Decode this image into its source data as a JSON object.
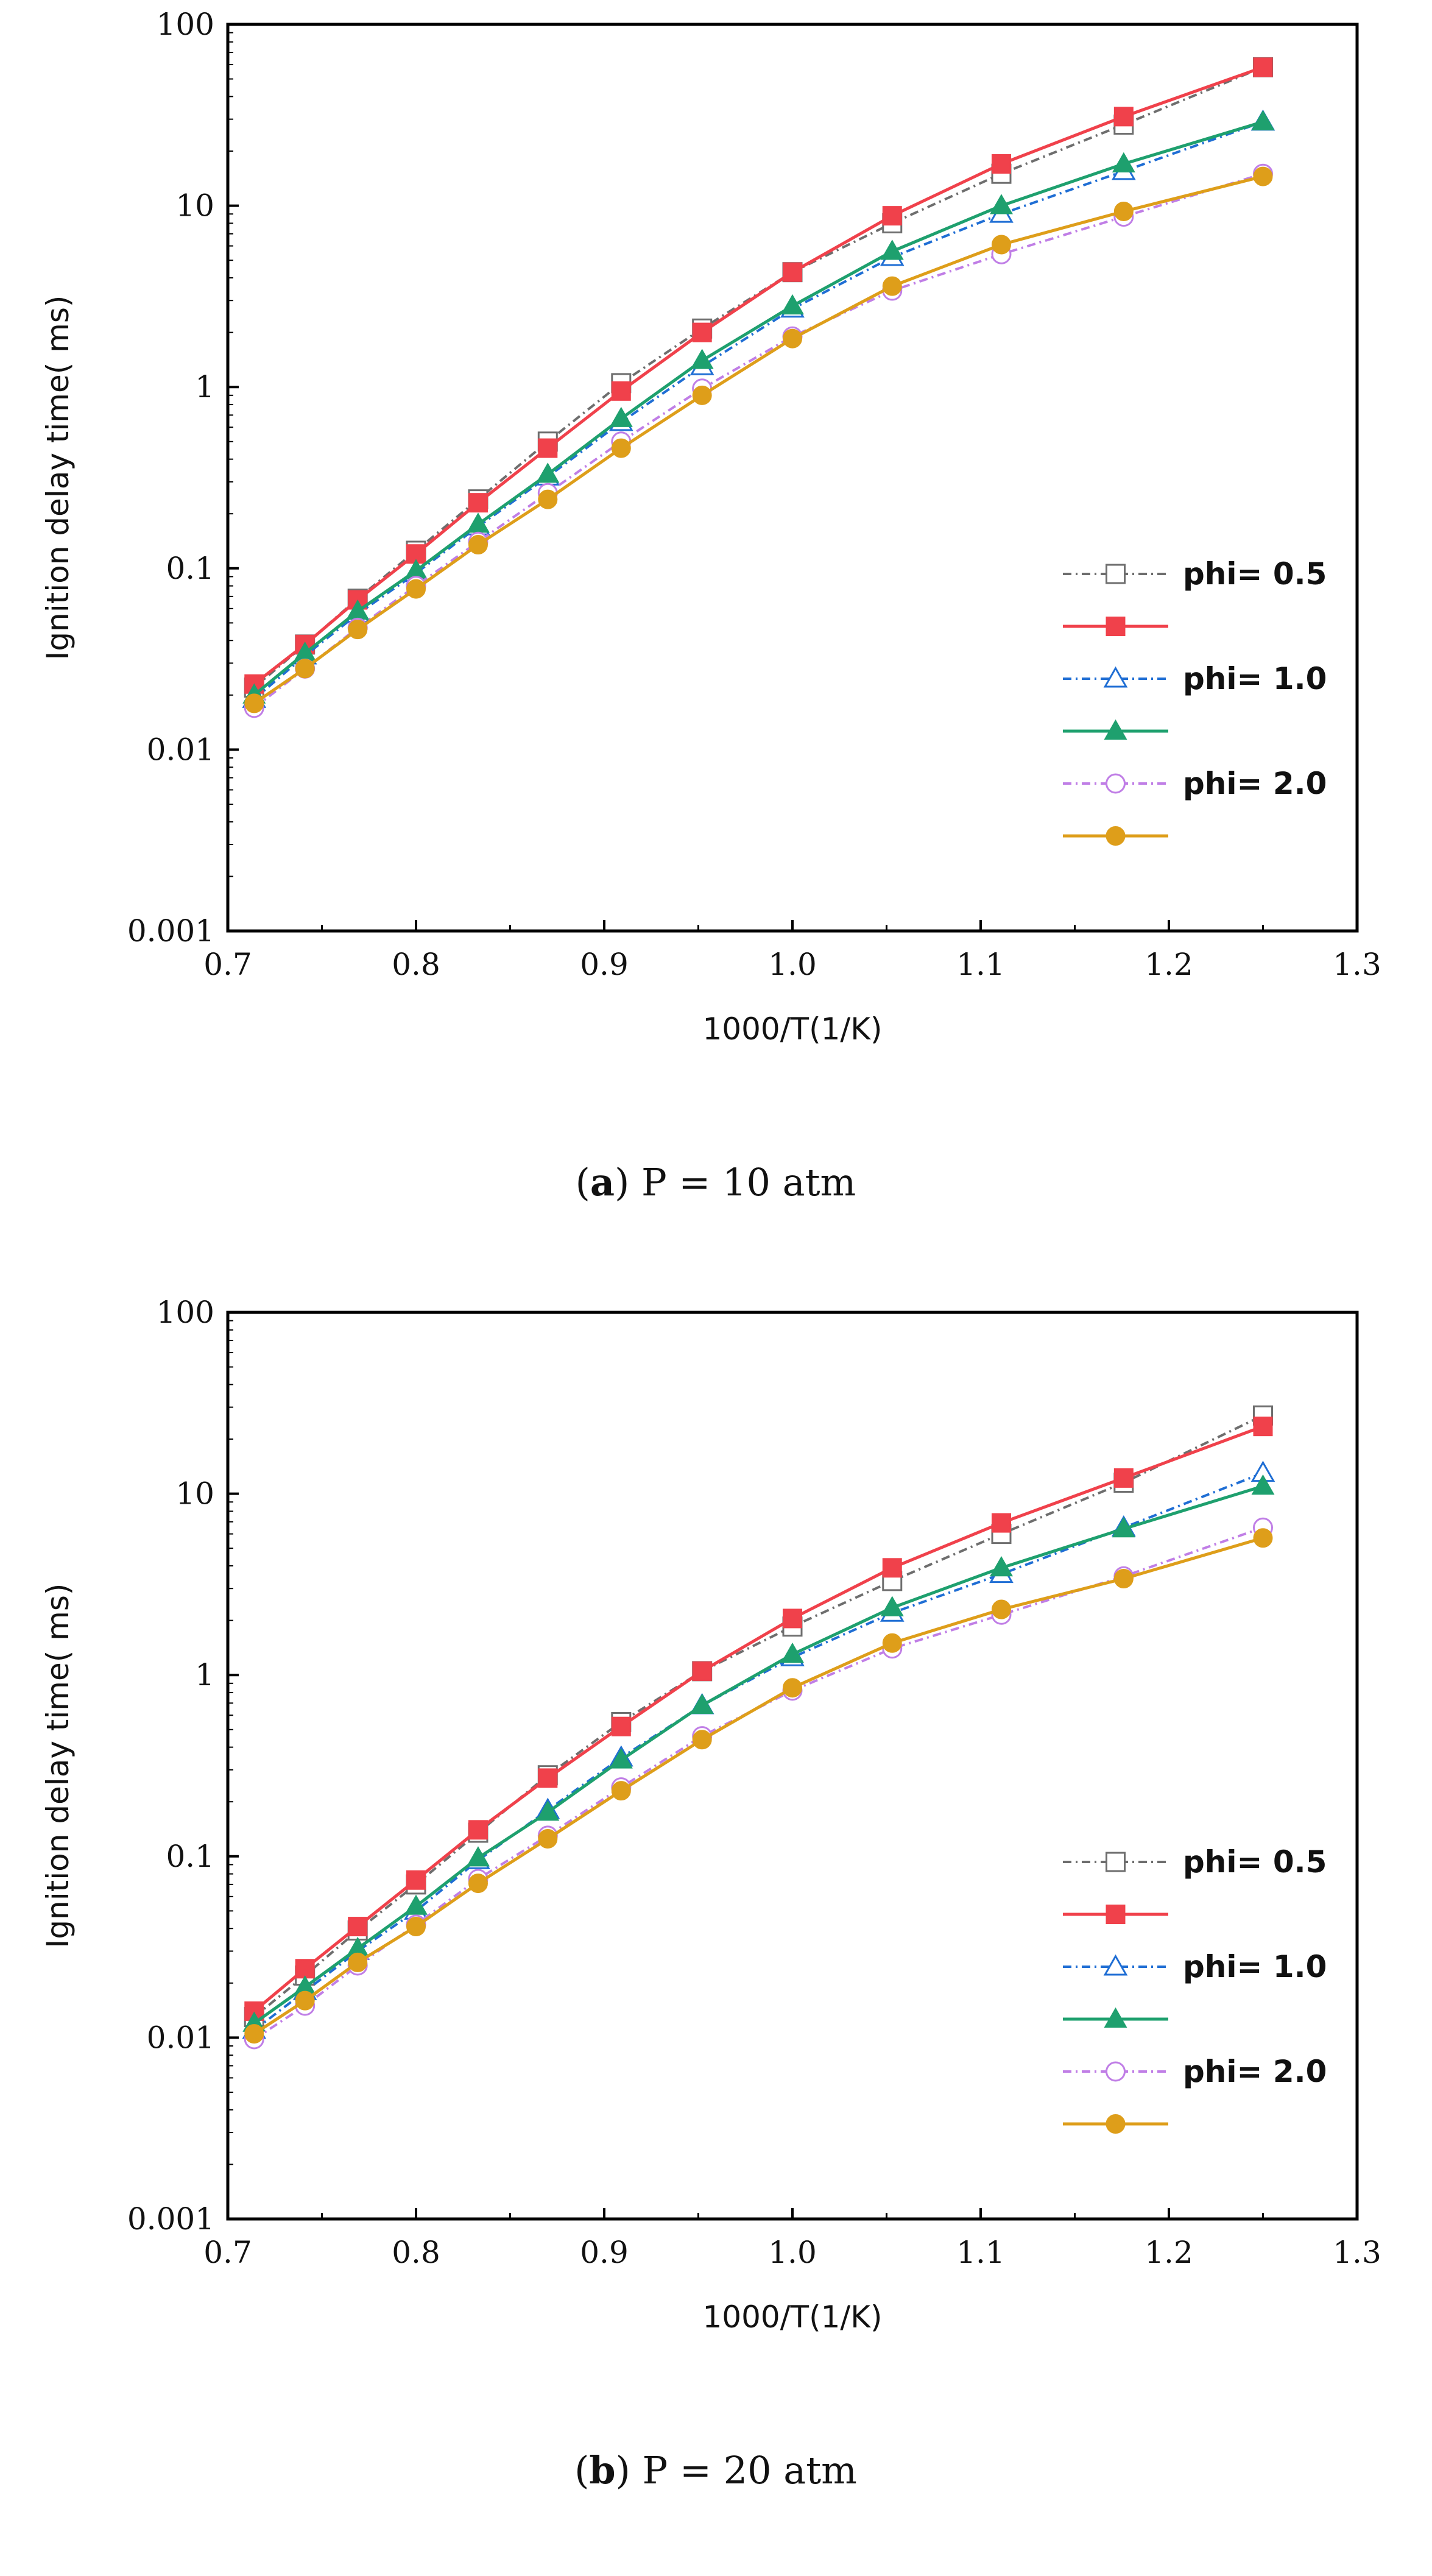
{
  "chart_data": [
    {
      "type": "line",
      "caption_letter": "a",
      "caption_text": "P = 10 atm",
      "xlabel": "1000/T(1/K)",
      "ylabel": "Ignition delay time( ms)",
      "yscale": "log",
      "xlim": [
        0.7,
        1.3
      ],
      "ylim": [
        0.001,
        100
      ],
      "x_ticks": [
        "0.7",
        "0.8",
        "0.9",
        "1.0",
        "1.1",
        "1.2",
        "1.3"
      ],
      "y_ticks": [
        "0.001",
        "0.01",
        "0.1",
        "1",
        "10",
        "100"
      ],
      "legend_position": "lower-right",
      "x": [
        0.714,
        0.741,
        0.769,
        0.8,
        0.833,
        0.87,
        0.909,
        0.952,
        1.0,
        1.053,
        1.111,
        1.176,
        1.25
      ],
      "series": [
        {
          "name": "phi= 0.5",
          "color": "#6e6e6e",
          "dash": "dashdot",
          "marker": "square-open",
          "values": [
            0.022,
            0.038,
            0.068,
            0.125,
            0.24,
            0.5,
            1.05,
            2.1,
            4.3,
            8.0,
            15.0,
            28.0,
            58.0
          ]
        },
        {
          "name": "",
          "color": "#f0414b",
          "dash": "solid",
          "marker": "square-filled",
          "values": [
            0.023,
            0.038,
            0.067,
            0.12,
            0.23,
            0.46,
            0.95,
            2.0,
            4.3,
            8.8,
            17.0,
            31.0,
            58.0
          ]
        },
        {
          "name": "phi= 1.0",
          "color": "#1f6ed4",
          "dash": "dashdot",
          "marker": "triangle-open",
          "values": [
            0.019,
            0.033,
            0.056,
            0.094,
            0.17,
            0.32,
            0.64,
            1.3,
            2.7,
            5.2,
            9.0,
            15.5,
            29.0
          ]
        },
        {
          "name": "",
          "color": "#1ea06e",
          "dash": "solid",
          "marker": "triangle-filled",
          "values": [
            0.02,
            0.034,
            0.058,
            0.097,
            0.175,
            0.33,
            0.67,
            1.4,
            2.8,
            5.6,
            10.0,
            17.0,
            29.0
          ]
        },
        {
          "name": "phi= 2.0",
          "color": "#c07ee6",
          "dash": "dashdot",
          "marker": "circle-open",
          "values": [
            0.017,
            0.028,
            0.047,
            0.08,
            0.14,
            0.26,
            0.5,
            0.98,
            1.9,
            3.4,
            5.4,
            8.7,
            15.0
          ]
        },
        {
          "name": "",
          "color": "#de9e1a",
          "dash": "solid",
          "marker": "circle-filled",
          "values": [
            0.018,
            0.028,
            0.046,
            0.077,
            0.135,
            0.24,
            0.46,
            0.9,
            1.85,
            3.6,
            6.1,
            9.3,
            14.5
          ]
        }
      ]
    },
    {
      "type": "line",
      "caption_letter": "b",
      "caption_text": "P = 20 atm",
      "xlabel": "1000/T(1/K)",
      "ylabel": "Ignition delay time( ms)",
      "yscale": "log",
      "xlim": [
        0.7,
        1.3
      ],
      "ylim": [
        0.001,
        100
      ],
      "x_ticks": [
        "0.7",
        "0.8",
        "0.9",
        "1.0",
        "1.1",
        "1.2",
        "1.3"
      ],
      "y_ticks": [
        "0.001",
        "0.01",
        "0.1",
        "1",
        "10",
        "100"
      ],
      "legend_position": "lower-right",
      "x": [
        0.714,
        0.741,
        0.769,
        0.8,
        0.833,
        0.87,
        0.909,
        0.952,
        1.0,
        1.053,
        1.111,
        1.176,
        1.25
      ],
      "series": [
        {
          "name": "phi= 0.5",
          "color": "#6e6e6e",
          "dash": "dashdot",
          "marker": "square-open",
          "values": [
            0.013,
            0.022,
            0.039,
            0.07,
            0.135,
            0.28,
            0.55,
            1.05,
            1.85,
            3.3,
            6.0,
            11.5,
            27.0
          ]
        },
        {
          "name": "",
          "color": "#f0414b",
          "dash": "solid",
          "marker": "square-filled",
          "values": [
            0.014,
            0.024,
            0.041,
            0.074,
            0.14,
            0.27,
            0.52,
            1.05,
            2.05,
            3.9,
            6.9,
            12.2,
            23.5
          ]
        },
        {
          "name": "phi= 1.0",
          "color": "#1f6ed4",
          "dash": "dashdot",
          "marker": "triangle-open",
          "values": [
            0.011,
            0.018,
            0.03,
            0.05,
            0.095,
            0.18,
            0.35,
            0.68,
            1.25,
            2.2,
            3.6,
            6.5,
            13.0
          ]
        },
        {
          "name": "",
          "color": "#1ea06e",
          "dash": "solid",
          "marker": "triangle-filled",
          "values": [
            0.012,
            0.019,
            0.031,
            0.053,
            0.098,
            0.175,
            0.34,
            0.68,
            1.3,
            2.35,
            3.9,
            6.4,
            11.0
          ]
        },
        {
          "name": "phi= 2.0",
          "color": "#c07ee6",
          "dash": "dashdot",
          "marker": "circle-open",
          "values": [
            0.0098,
            0.015,
            0.025,
            0.042,
            0.075,
            0.13,
            0.24,
            0.46,
            0.82,
            1.4,
            2.15,
            3.5,
            6.5
          ]
        },
        {
          "name": "",
          "color": "#de9e1a",
          "dash": "solid",
          "marker": "circle-filled",
          "values": [
            0.0105,
            0.016,
            0.026,
            0.041,
            0.071,
            0.125,
            0.23,
            0.44,
            0.85,
            1.5,
            2.3,
            3.4,
            5.7
          ]
        }
      ]
    }
  ]
}
